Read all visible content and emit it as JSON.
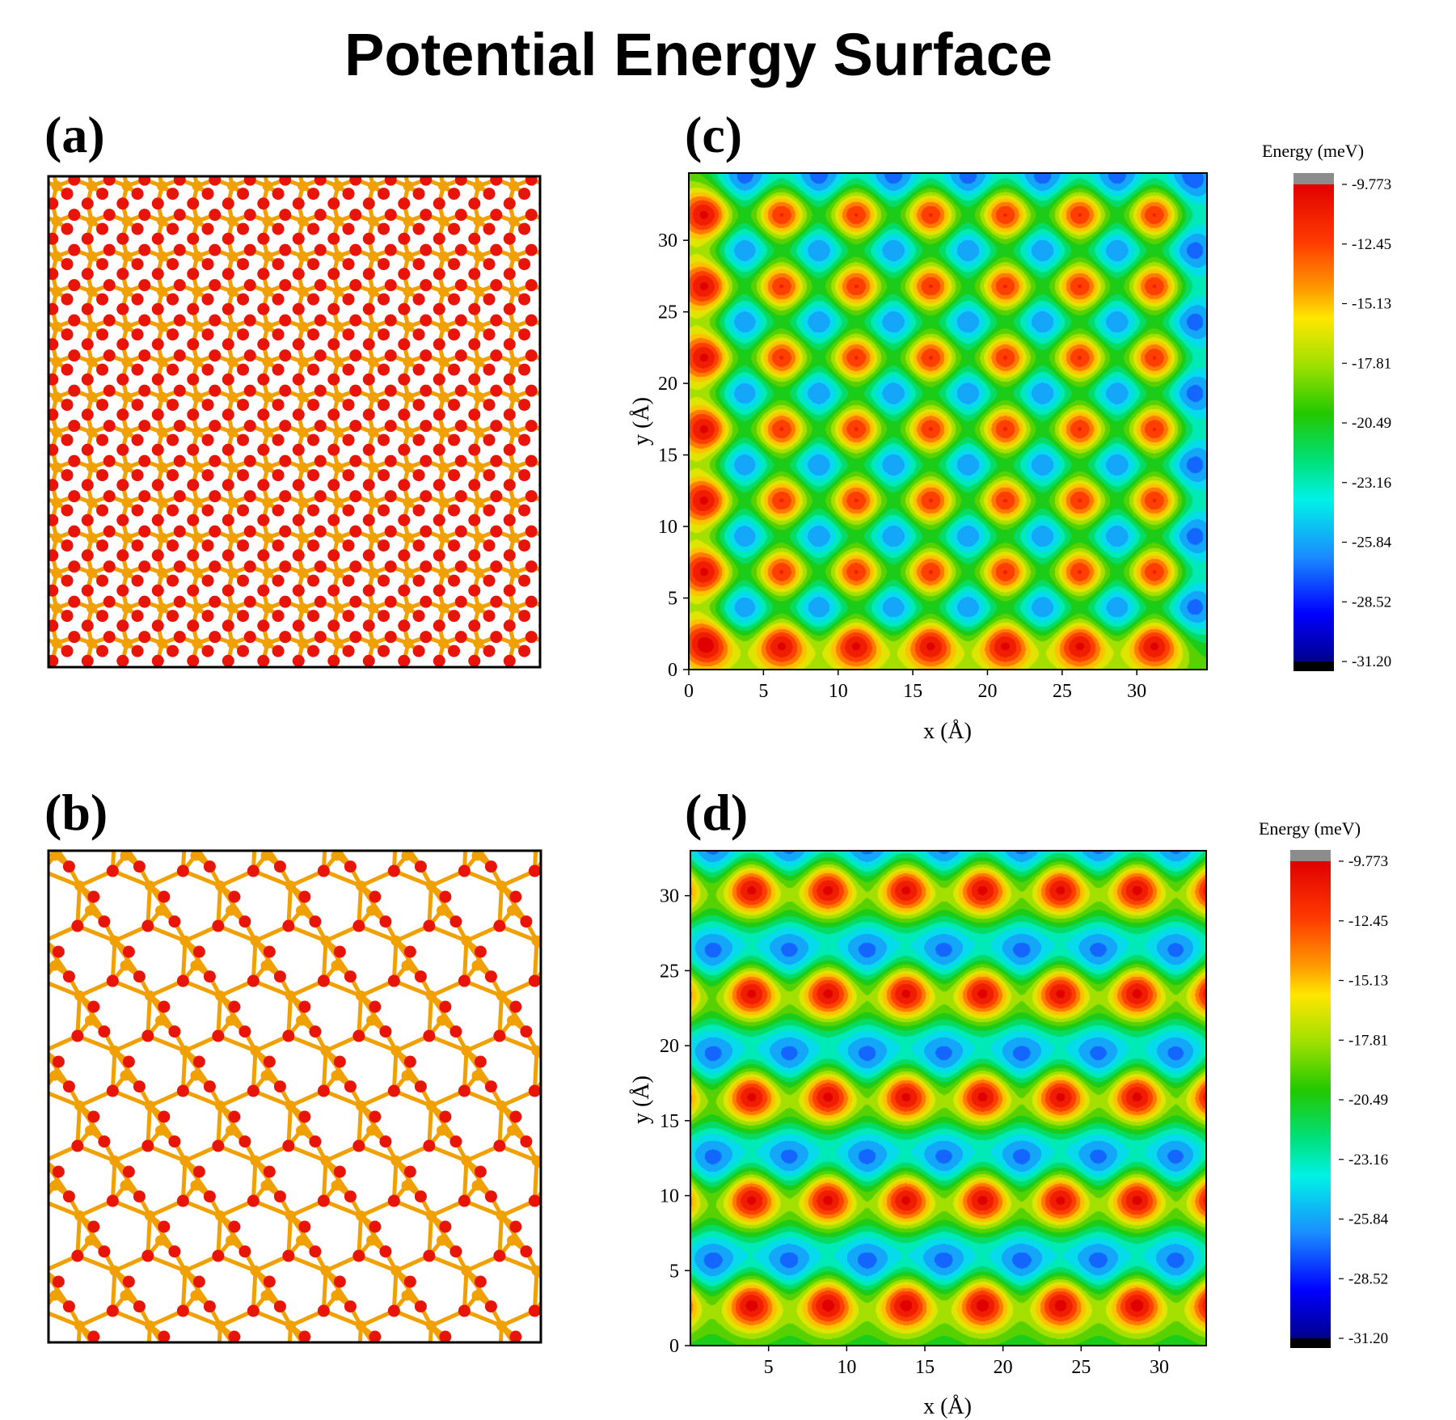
{
  "figure": {
    "title": "Potential Energy Surface",
    "panel_labels": {
      "a": "(a)",
      "b": "(b)",
      "c": "(c)",
      "d": "(d)"
    }
  },
  "colors": {
    "oxygen": "#e8140a",
    "silicon": "#f0a000",
    "frame": "#000000",
    "colorbar_top": "#8c8c8c",
    "colorbar_bottom": "#000000"
  },
  "chart_data": [
    {
      "panel": "c",
      "type": "heatmap",
      "xlabel": "x (Å)",
      "ylabel": "y (Å)",
      "xlim": [
        0,
        34.7
      ],
      "ylim": [
        0,
        34.7
      ],
      "x_ticks": [
        0,
        5,
        10,
        15,
        20,
        25,
        30
      ],
      "y_ticks": [
        0,
        5,
        10,
        15,
        20,
        25,
        30
      ],
      "colorbar": {
        "title": "Energy (meV)",
        "tick_labels": [
          "-9.773",
          "-12.45",
          "-15.13",
          "-17.81",
          "-20.49",
          "-23.16",
          "-25.84",
          "-28.52",
          "-31.20"
        ],
        "range": [
          -31.2,
          -9.773
        ]
      },
      "maxima_x": [
        1.2,
        6.2,
        11.2,
        16.2,
        21.2,
        26.2,
        31.2
      ],
      "maxima_y": [
        1.8,
        6.8,
        11.8,
        16.8,
        21.8,
        26.8,
        31.8
      ],
      "minima_x": [
        3.7,
        8.7,
        13.7,
        18.7,
        23.7,
        28.7,
        33.7
      ],
      "minima_y": [
        4.3,
        9.3,
        14.3,
        19.3,
        24.3,
        29.3,
        34.3
      ],
      "background_value": -19.5
    },
    {
      "panel": "d",
      "type": "heatmap",
      "xlabel": "x (Å)",
      "ylabel": "y (Å)",
      "xlim": [
        0,
        33
      ],
      "ylim": [
        0,
        33
      ],
      "x_ticks": [
        5,
        10,
        15,
        20,
        25,
        30
      ],
      "y_ticks": [
        0,
        5,
        10,
        15,
        20,
        25,
        30
      ],
      "colorbar": {
        "title": "Energy (meV)",
        "tick_labels": [
          "-9.773",
          "-12.45",
          "-15.13",
          "-17.81",
          "-20.49",
          "-23.16",
          "-25.84",
          "-28.52",
          "-31.20"
        ],
        "range": [
          -31.2,
          -9.773
        ]
      },
      "maxima_x": [
        -1.2,
        3.9,
        8.8,
        13.8,
        18.7,
        23.7,
        28.6,
        33.6
      ],
      "maxima_y": [
        2.8,
        9.8,
        16.7,
        23.6,
        30.5
      ],
      "minima_x": [
        1.4,
        6.3,
        11.3,
        16.2,
        21.2,
        26.1,
        31.1
      ],
      "minima_y": [
        5.4,
        12.3,
        19.2,
        26.1,
        33.0
      ],
      "background_value": -21.0
    }
  ]
}
